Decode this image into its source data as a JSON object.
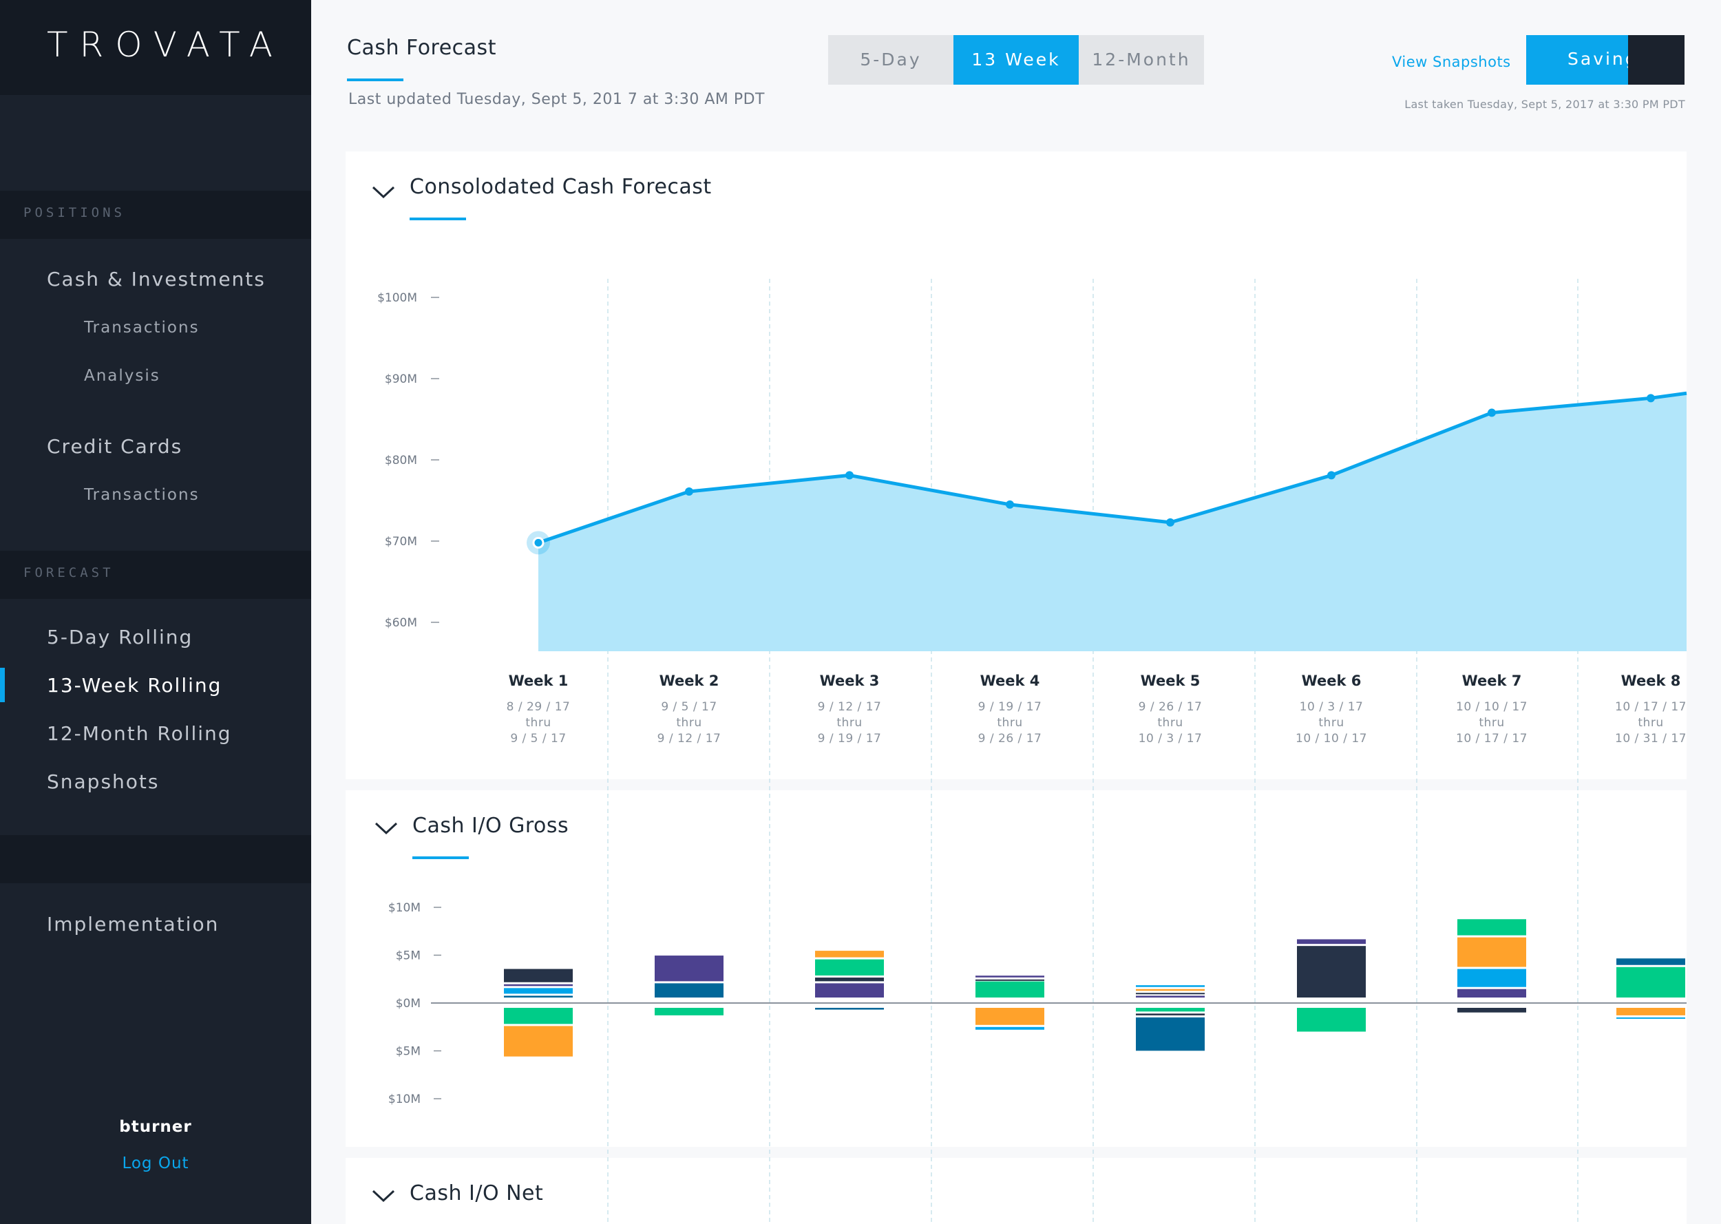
{
  "sidebar": {
    "brand": "TROVATA",
    "positions_header": "POSITIONS",
    "positions_items": [
      {
        "label": "Cash & Investments",
        "subitems": [
          "Transactions",
          "Analysis"
        ]
      },
      {
        "label": "Credit Cards",
        "subitems": [
          "Transactions"
        ]
      }
    ],
    "forecast_header": "FORECAST",
    "forecast_items": [
      "5-Day Rolling",
      "13-Week Rolling",
      "12-Month Rolling",
      "Snapshots"
    ],
    "active_item": "13-Week Rolling",
    "implementation": "Implementation",
    "user": "bturner",
    "logout": "Log Out"
  },
  "header": {
    "title": "Cash Forecast",
    "last_updated": "Last updated Tuesday, Sept 5, 201 7 at 3:30 AM PDT",
    "period_options": [
      "5-Day",
      "13 Week",
      "12-Month"
    ],
    "period_selected": "13 Week",
    "view_snapshots": "View Snapshots",
    "saving_label": "Saving...",
    "last_taken": "Last taken Tuesday, Sept 5, 2017 at 3:30 PM PDT"
  },
  "colors": {
    "accent": "#0aa6ec",
    "area_fill": "#b2e6fa",
    "sidebar_bg": "#1b222d",
    "green": "#00cc88",
    "orange": "#ffa22b",
    "purple": "#4c418f",
    "navy": "#263348",
    "blue": "#00a6eb",
    "teal_blue": "#006799"
  },
  "panels": {
    "forecast_title": "Consolodated Cash Forecast",
    "gross_title": "Cash I/O Gross",
    "net_title": "Cash I/O Net"
  },
  "weeks": [
    {
      "label": "Week 1",
      "from": "8 / 29 / 17",
      "thru": "thru",
      "to": "9 / 5 / 17"
    },
    {
      "label": "Week 2",
      "from": "9 / 5 / 17",
      "thru": "thru",
      "to": "9 / 12 / 17"
    },
    {
      "label": "Week 3",
      "from": "9 / 12 / 17",
      "thru": "thru",
      "to": "9 / 19 / 17"
    },
    {
      "label": "Week 4",
      "from": "9 / 19 / 17",
      "thru": "thru",
      "to": "9 / 26 / 17"
    },
    {
      "label": "Week 5",
      "from": "9 / 26 / 17",
      "thru": "thru",
      "to": "10 / 3 / 17"
    },
    {
      "label": "Week 6",
      "from": "10 / 3 / 17",
      "thru": "thru",
      "to": "10 / 10 / 17"
    },
    {
      "label": "Week 7",
      "from": "10 / 10 / 17",
      "thru": "thru",
      "to": "10 / 17 / 17"
    },
    {
      "label": "Week 8",
      "from": "10 / 17 / 17",
      "thru": "thru",
      "to": "10 / 31 / 17"
    }
  ],
  "chart_data": [
    {
      "type": "area",
      "title": "Consolodated Cash Forecast",
      "categories": [
        "Week 1",
        "Week 2",
        "Week 3",
        "Week 4",
        "Week 5",
        "Week 6",
        "Week 7",
        "Week 8"
      ],
      "yticks": [
        "$100M",
        "$90M",
        "$80M",
        "$70M",
        "$60M"
      ],
      "ytick_values": [
        100,
        90,
        80,
        70,
        60
      ],
      "values": [
        69.8,
        76.1,
        78.1,
        74.5,
        72.3,
        78.1,
        85.8,
        87.6
      ],
      "trailing_value": 88.2,
      "unit": "$M",
      "grid": "vertical dashed"
    },
    {
      "type": "bar",
      "stacked": true,
      "title": "Cash I/O Gross",
      "categories": [
        "Week 1",
        "Week 2",
        "Week 3",
        "Week 4",
        "Week 5",
        "Week 6",
        "Week 7",
        "Week 8"
      ],
      "yticks": [
        "$10M",
        "$5M",
        "$0M",
        "$5M",
        "$10M"
      ],
      "ytick_values": [
        10,
        5,
        0,
        -5,
        -10
      ],
      "unit": "$M",
      "inflows": [
        [
          {
            "color": "teal_blue",
            "value": 0.4
          },
          {
            "color": "blue",
            "value": 0.8
          },
          {
            "color": "purple",
            "value": 0.4
          },
          {
            "color": "navy",
            "value": 1.6
          }
        ],
        [
          {
            "color": "teal_blue",
            "value": 1.7
          },
          {
            "color": "purple",
            "value": 2.9
          }
        ],
        [
          {
            "color": "purple",
            "value": 1.7
          },
          {
            "color": "navy",
            "value": 0.6
          },
          {
            "color": "green",
            "value": 1.9
          },
          {
            "color": "orange",
            "value": 0.9
          }
        ],
        [
          {
            "color": "green",
            "value": 1.9
          },
          {
            "color": "navy",
            "value": 0.2
          },
          {
            "color": "purple",
            "value": 0.4
          }
        ],
        [
          {
            "color": "purple",
            "value": 0.4
          },
          {
            "color": "navy",
            "value": 0.3
          },
          {
            "color": "orange",
            "value": 0.4
          },
          {
            "color": "blue",
            "value": 0.4
          }
        ],
        [
          {
            "color": "navy",
            "value": 5.6
          },
          {
            "color": "purple",
            "value": 0.7
          }
        ],
        [
          {
            "color": "purple",
            "value": 1.1
          },
          {
            "color": "blue",
            "value": 2.1
          },
          {
            "color": "orange",
            "value": 3.3
          },
          {
            "color": "green",
            "value": 1.9
          }
        ],
        [
          {
            "color": "green",
            "value": 3.4
          },
          {
            "color": "teal_blue",
            "value": 0.9
          }
        ]
      ],
      "outflows": [
        [
          {
            "color": "green",
            "value": 1.9
          },
          {
            "color": "orange",
            "value": 3.4
          }
        ],
        [
          {
            "color": "green",
            "value": 1.0
          }
        ],
        [
          {
            "color": "teal_blue",
            "value": 0.4
          }
        ],
        [
          {
            "color": "orange",
            "value": 2.0
          },
          {
            "color": "blue",
            "value": 0.5
          }
        ],
        [
          {
            "color": "green",
            "value": 0.6
          },
          {
            "color": "navy",
            "value": 0.4
          },
          {
            "color": "teal_blue",
            "value": 3.7
          }
        ],
        [
          {
            "color": "green",
            "value": 2.7
          }
        ],
        [
          {
            "color": "navy",
            "value": 0.7
          }
        ],
        [
          {
            "color": "orange",
            "value": 1.0
          },
          {
            "color": "blue",
            "value": 0.3
          }
        ]
      ]
    }
  ]
}
